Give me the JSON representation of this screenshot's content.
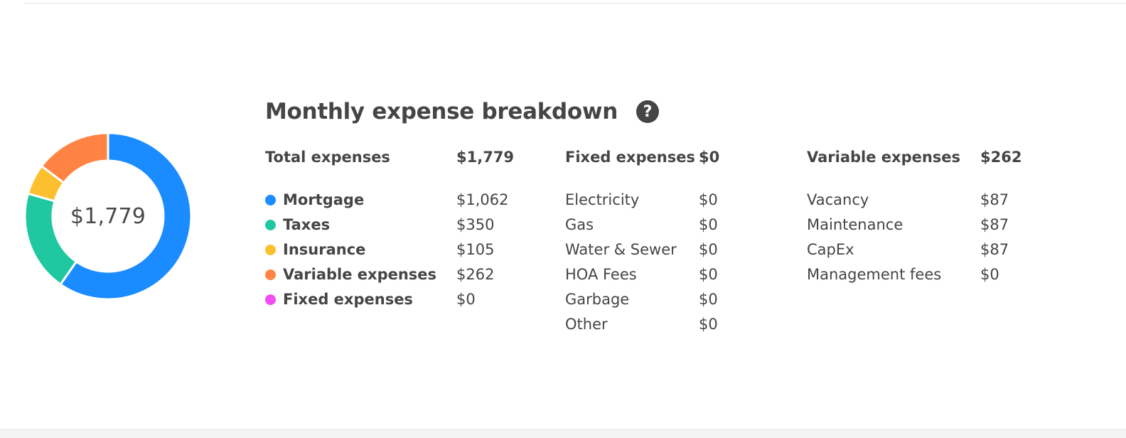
{
  "summary": {
    "title": "Monthly expense breakdown",
    "help_icon": "question-circle-icon",
    "total_label": "Total expenses",
    "total_value": "$1,779",
    "center_value": "$1,779"
  },
  "colors": {
    "mortgage": "#1a8cff",
    "taxes": "#1fc8a0",
    "insurance": "#fcbf2e",
    "variable": "#ff8444",
    "fixed": "#f24cf2"
  },
  "chart_data": {
    "type": "pie",
    "categories": [
      "Mortgage",
      "Taxes",
      "Insurance",
      "Variable expenses",
      "Fixed expenses"
    ],
    "values": [
      1062,
      350,
      105,
      262,
      0
    ]
  },
  "legend": [
    {
      "label": "Mortgage",
      "value": "$1,062",
      "color": "#1a8cff"
    },
    {
      "label": "Taxes",
      "value": "$350",
      "color": "#1fc8a0"
    },
    {
      "label": "Insurance",
      "value": "$105",
      "color": "#fcbf2e"
    },
    {
      "label": "Variable expenses",
      "value": "$262",
      "color": "#ff8444"
    },
    {
      "label": "Fixed expenses",
      "value": "$0",
      "color": "#f24cf2"
    }
  ],
  "fixed": {
    "header_label": "Fixed expenses",
    "header_value": "$0",
    "items": [
      {
        "label": "Electricity",
        "value": "$0"
      },
      {
        "label": "Gas",
        "value": "$0"
      },
      {
        "label": "Water & Sewer",
        "value": "$0"
      },
      {
        "label": "HOA Fees",
        "value": "$0"
      },
      {
        "label": "Garbage",
        "value": "$0"
      },
      {
        "label": "Other",
        "value": "$0"
      }
    ]
  },
  "variable": {
    "header_label": "Variable expenses",
    "header_value": "$262",
    "items": [
      {
        "label": "Vacancy",
        "value": "$87"
      },
      {
        "label": "Maintenance",
        "value": "$87"
      },
      {
        "label": "CapEx",
        "value": "$87"
      },
      {
        "label": "Management fees",
        "value": "$0"
      }
    ]
  }
}
